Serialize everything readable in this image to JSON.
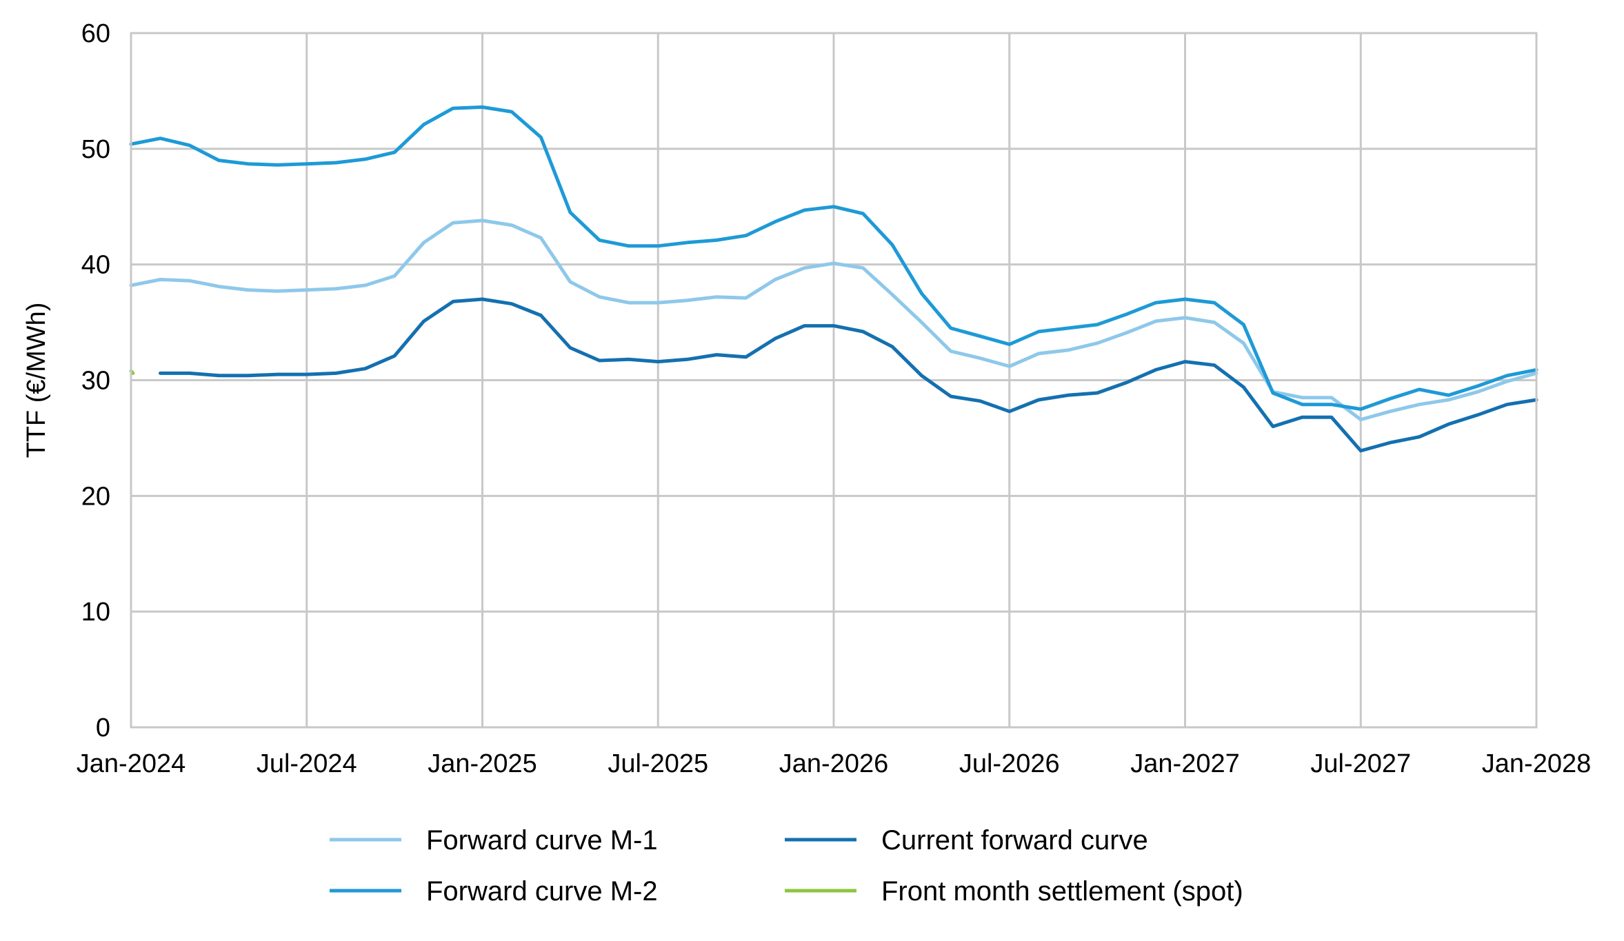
{
  "chart_data": {
    "type": "line",
    "title": "",
    "xlabel": "",
    "ylabel": "TTF (€/MWh)",
    "ylim": [
      0,
      60
    ],
    "yticks": [
      "0",
      "10",
      "20",
      "30",
      "40",
      "50",
      "60"
    ],
    "xlim": [
      "2024-01",
      "2028-01"
    ],
    "xticks": [
      {
        "date": "2024-01",
        "label": "Jan-2024"
      },
      {
        "date": "2024-07",
        "label": "Jul-2024"
      },
      {
        "date": "2025-01",
        "label": "Jan-2025"
      },
      {
        "date": "2025-07",
        "label": "Jul-2025"
      },
      {
        "date": "2026-01",
        "label": "Jan-2026"
      },
      {
        "date": "2026-07",
        "label": "Jul-2026"
      },
      {
        "date": "2027-01",
        "label": "Jan-2027"
      },
      {
        "date": "2027-07",
        "label": "Jul-2027"
      },
      {
        "date": "2028-01",
        "label": "Jan-2028"
      }
    ],
    "grid": true,
    "legend": "bottom",
    "series": [
      {
        "name": "Forward curve M-1",
        "color": "#8ec8ea",
        "points": [
          [
            "2024-01",
            38.2
          ],
          [
            "2024-02",
            38.7
          ],
          [
            "2024-03",
            38.6
          ],
          [
            "2024-04",
            38.1
          ],
          [
            "2024-05",
            37.8
          ],
          [
            "2024-06",
            37.7
          ],
          [
            "2024-07",
            37.8
          ],
          [
            "2024-08",
            37.9
          ],
          [
            "2024-09",
            38.2
          ],
          [
            "2024-10",
            39.0
          ],
          [
            "2024-11",
            41.9
          ],
          [
            "2024-12",
            43.6
          ],
          [
            "2025-01",
            43.8
          ],
          [
            "2025-02",
            43.4
          ],
          [
            "2025-03",
            42.3
          ],
          [
            "2025-04",
            38.5
          ],
          [
            "2025-05",
            37.2
          ],
          [
            "2025-06",
            36.7
          ],
          [
            "2025-07",
            36.7
          ],
          [
            "2025-08",
            36.9
          ],
          [
            "2025-09",
            37.2
          ],
          [
            "2025-10",
            37.1
          ],
          [
            "2025-11",
            38.7
          ],
          [
            "2025-12",
            39.7
          ],
          [
            "2026-01",
            40.1
          ],
          [
            "2026-02",
            39.7
          ],
          [
            "2026-03",
            37.4
          ],
          [
            "2026-04",
            35.0
          ],
          [
            "2026-05",
            32.5
          ],
          [
            "2026-06",
            31.9
          ],
          [
            "2026-07",
            31.2
          ],
          [
            "2026-08",
            32.3
          ],
          [
            "2026-09",
            32.6
          ],
          [
            "2026-10",
            33.2
          ],
          [
            "2026-11",
            34.1
          ],
          [
            "2026-12",
            35.1
          ],
          [
            "2027-01",
            35.4
          ],
          [
            "2027-02",
            35.0
          ],
          [
            "2027-03",
            33.2
          ],
          [
            "2027-04",
            29.0
          ],
          [
            "2027-05",
            28.5
          ],
          [
            "2027-06",
            28.5
          ],
          [
            "2027-07",
            26.6
          ],
          [
            "2027-08",
            27.3
          ],
          [
            "2027-09",
            27.9
          ],
          [
            "2027-10",
            28.3
          ],
          [
            "2027-11",
            29.0
          ],
          [
            "2027-12",
            29.9
          ],
          [
            "2028-01",
            30.6
          ]
        ]
      },
      {
        "name": "Forward curve M-2",
        "color": "#1e9ad6",
        "points": [
          [
            "2024-01",
            50.4
          ],
          [
            "2024-02",
            50.9
          ],
          [
            "2024-03",
            50.3
          ],
          [
            "2024-04",
            49.0
          ],
          [
            "2024-05",
            48.7
          ],
          [
            "2024-06",
            48.6
          ],
          [
            "2024-07",
            48.7
          ],
          [
            "2024-08",
            48.8
          ],
          [
            "2024-09",
            49.1
          ],
          [
            "2024-10",
            49.7
          ],
          [
            "2024-11",
            52.1
          ],
          [
            "2024-12",
            53.5
          ],
          [
            "2025-01",
            53.6
          ],
          [
            "2025-02",
            53.2
          ],
          [
            "2025-03",
            51.0
          ],
          [
            "2025-04",
            44.5
          ],
          [
            "2025-05",
            42.1
          ],
          [
            "2025-06",
            41.6
          ],
          [
            "2025-07",
            41.6
          ],
          [
            "2025-08",
            41.9
          ],
          [
            "2025-09",
            42.1
          ],
          [
            "2025-10",
            42.5
          ],
          [
            "2025-11",
            43.7
          ],
          [
            "2025-12",
            44.7
          ],
          [
            "2026-01",
            45.0
          ],
          [
            "2026-02",
            44.4
          ],
          [
            "2026-03",
            41.7
          ],
          [
            "2026-04",
            37.5
          ],
          [
            "2026-05",
            34.5
          ],
          [
            "2026-06",
            33.8
          ],
          [
            "2026-07",
            33.1
          ],
          [
            "2026-08",
            34.2
          ],
          [
            "2026-09",
            34.5
          ],
          [
            "2026-10",
            34.8
          ],
          [
            "2026-11",
            35.7
          ],
          [
            "2026-12",
            36.7
          ],
          [
            "2027-01",
            37.0
          ],
          [
            "2027-02",
            36.7
          ],
          [
            "2027-03",
            34.8
          ],
          [
            "2027-04",
            28.9
          ],
          [
            "2027-05",
            27.9
          ],
          [
            "2027-06",
            27.9
          ],
          [
            "2027-07",
            27.5
          ],
          [
            "2027-08",
            28.4
          ],
          [
            "2027-09",
            29.2
          ],
          [
            "2027-10",
            28.7
          ],
          [
            "2027-11",
            29.5
          ],
          [
            "2027-12",
            30.4
          ],
          [
            "2028-01",
            30.9
          ]
        ]
      },
      {
        "name": "Current forward curve",
        "color": "#1470b0",
        "points": [
          [
            "2024-02",
            30.6
          ],
          [
            "2024-03",
            30.6
          ],
          [
            "2024-04",
            30.4
          ],
          [
            "2024-05",
            30.4
          ],
          [
            "2024-06",
            30.5
          ],
          [
            "2024-07",
            30.5
          ],
          [
            "2024-08",
            30.6
          ],
          [
            "2024-09",
            31.0
          ],
          [
            "2024-10",
            32.1
          ],
          [
            "2024-11",
            35.1
          ],
          [
            "2024-12",
            36.8
          ],
          [
            "2025-01",
            37.0
          ],
          [
            "2025-02",
            36.6
          ],
          [
            "2025-03",
            35.6
          ],
          [
            "2025-04",
            32.8
          ],
          [
            "2025-05",
            31.7
          ],
          [
            "2025-06",
            31.8
          ],
          [
            "2025-07",
            31.6
          ],
          [
            "2025-08",
            31.8
          ],
          [
            "2025-09",
            32.2
          ],
          [
            "2025-10",
            32.0
          ],
          [
            "2025-11",
            33.6
          ],
          [
            "2025-12",
            34.7
          ],
          [
            "2026-01",
            34.7
          ],
          [
            "2026-02",
            34.2
          ],
          [
            "2026-03",
            32.9
          ],
          [
            "2026-04",
            30.4
          ],
          [
            "2026-05",
            28.6
          ],
          [
            "2026-06",
            28.2
          ],
          [
            "2026-07",
            27.3
          ],
          [
            "2026-08",
            28.3
          ],
          [
            "2026-09",
            28.7
          ],
          [
            "2026-10",
            28.9
          ],
          [
            "2026-11",
            29.8
          ],
          [
            "2026-12",
            30.9
          ],
          [
            "2027-01",
            31.6
          ],
          [
            "2027-02",
            31.3
          ],
          [
            "2027-03",
            29.4
          ],
          [
            "2027-04",
            26.0
          ],
          [
            "2027-05",
            26.8
          ],
          [
            "2027-06",
            26.8
          ],
          [
            "2027-07",
            23.9
          ],
          [
            "2027-08",
            24.6
          ],
          [
            "2027-09",
            25.1
          ],
          [
            "2027-10",
            26.2
          ],
          [
            "2027-11",
            27.0
          ],
          [
            "2027-12",
            27.9
          ],
          [
            "2028-01",
            28.3
          ]
        ]
      },
      {
        "name": "Front month settlement (spot)",
        "color": "#8dc63f",
        "points": [
          [
            "2024-01",
            30.8
          ],
          [
            "2024-01-03",
            30.6
          ]
        ]
      }
    ]
  }
}
